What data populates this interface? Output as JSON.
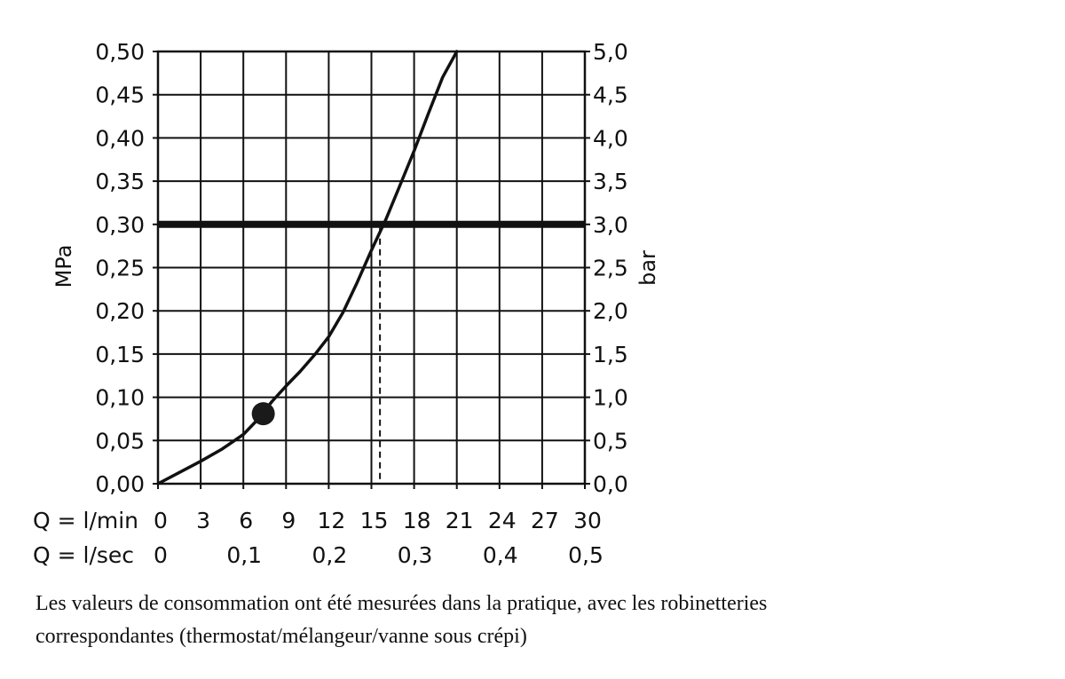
{
  "chart_data": {
    "type": "line",
    "y_left_label": "MPa",
    "y_right_label": "bar",
    "y_left_ticks": [
      "0,00",
      "0,05",
      "0,10",
      "0,15",
      "0,20",
      "0,25",
      "0,30",
      "0,35",
      "0,40",
      "0,45",
      "0,50"
    ],
    "y_right_ticks": [
      "0,0",
      "0,5",
      "1,0",
      "1,5",
      "2,0",
      "2,5",
      "3,0",
      "3,5",
      "4,0",
      "4,5",
      "5,0"
    ],
    "ylim": [
      0,
      0.5
    ],
    "xlim": [
      0,
      30
    ],
    "x_row1_label": "Q = l/min",
    "x_row1_ticks": [
      "0",
      "3",
      "6",
      "9",
      "12",
      "15",
      "18",
      "21",
      "24",
      "27",
      "30"
    ],
    "x_row2_label": "Q = l/sec",
    "x_row2_ticks": [
      "0",
      "0,1",
      "0,2",
      "0,3",
      "0,4",
      "0,5"
    ],
    "grid": true,
    "series": [
      {
        "x": [
          0,
          1.5,
          3,
          4.5,
          6,
          7,
          8,
          9,
          10,
          11,
          12,
          13,
          14,
          15,
          16,
          17,
          18,
          19,
          20,
          21
        ],
        "y": [
          0.0,
          0.013,
          0.026,
          0.04,
          0.057,
          0.074,
          0.095,
          0.113,
          0.13,
          0.149,
          0.17,
          0.198,
          0.233,
          0.27,
          0.305,
          0.345,
          0.385,
          0.428,
          0.47,
          0.5
        ]
      }
    ],
    "reference_line": {
      "y": 0.3
    },
    "marker_point": {
      "x": 7.4,
      "y": 0.081
    },
    "dashed_drop": {
      "x": 15.6
    }
  },
  "caption": {
    "line1": "Les valeurs de consommation ont été mesurées dans la pratique, avec les robinetteries",
    "line2": "correspondantes (thermostat/mélangeur/vanne sous crépi)"
  }
}
